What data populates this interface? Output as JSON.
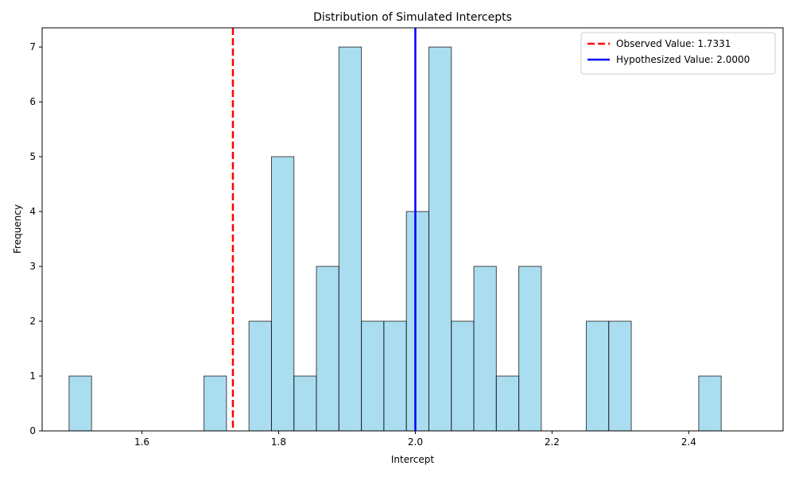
{
  "chart_data": {
    "type": "bar",
    "title": "Distribution of Simulated Intercepts",
    "xlabel": "Intercept",
    "ylabel": "Frequency",
    "xlim": [
      1.454,
      2.538
    ],
    "ylim": [
      0,
      7.35
    ],
    "x_ticks": [
      1.6,
      1.8,
      2.0,
      2.2,
      2.4
    ],
    "x_tick_labels": [
      "1.6",
      "1.8",
      "2.0",
      "2.2",
      "2.4"
    ],
    "y_ticks": [
      0,
      1,
      2,
      3,
      4,
      5,
      6,
      7
    ],
    "y_tick_labels": [
      "0",
      "1",
      "2",
      "3",
      "4",
      "5",
      "6",
      "7"
    ],
    "bin_edges": [
      1.4934,
      1.5263,
      1.5592,
      1.5921,
      1.625,
      1.6579,
      1.6908,
      1.7237,
      1.7566,
      1.7895,
      1.8224,
      1.8553,
      1.8882,
      1.9211,
      1.954,
      1.9869,
      2.0198,
      2.0527,
      2.0856,
      2.1185,
      2.1514,
      2.1843,
      2.2172,
      2.2501,
      2.283,
      2.3159,
      2.3488,
      2.3817,
      2.4146,
      2.4475,
      2.4804
    ],
    "values": [
      1,
      0,
      0,
      0,
      0,
      0,
      1,
      0,
      2,
      5,
      1,
      3,
      7,
      2,
      2,
      4,
      7,
      2,
      3,
      1,
      3,
      0,
      0,
      2,
      2,
      0,
      0,
      0,
      1,
      0
    ],
    "bar_color": "#87ceeb",
    "bar_edge_color": "#000000",
    "grid": false,
    "legend_position": "top-right",
    "reference_lines": [
      {
        "label": "Observed Value: 1.7331",
        "x": 1.7331,
        "color": "#ff0000",
        "style": "dashed"
      },
      {
        "label": "Hypothesized Value: 2.0000",
        "x": 2.0,
        "color": "#0000ff",
        "style": "solid"
      }
    ]
  }
}
